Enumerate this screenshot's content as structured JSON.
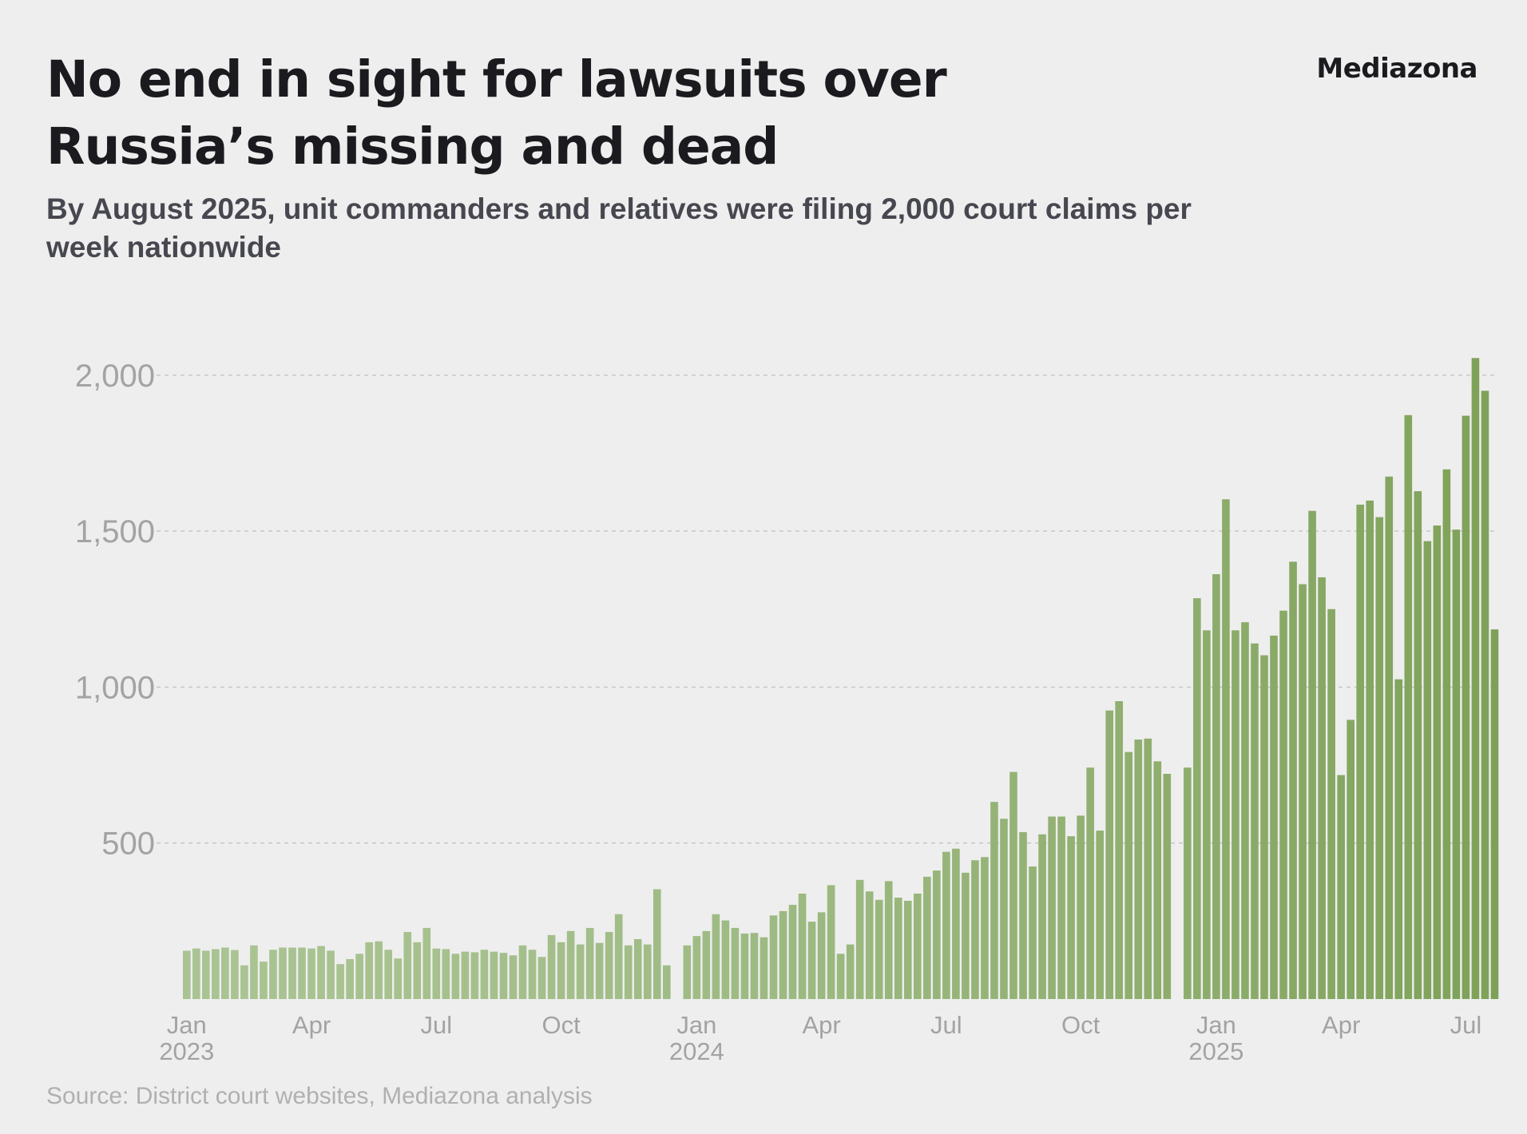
{
  "header": {
    "title": "No end in sight for lawsuits over Russia’s missing and dead",
    "brand": "Mediazona",
    "subtitle": "By August 2025, unit commanders and relatives were filing 2,000 court claims per week nationwide"
  },
  "footer": {
    "source": "Source: District court websites, Mediazona analysis"
  },
  "colors": {
    "background": "#eeeeee",
    "bar_light": "#a9c392",
    "bar_dark": "#7ea158",
    "grid": "#c4c4c4",
    "axis_text": "#a3a3a3"
  },
  "chart_data": {
    "type": "bar",
    "ylim": [
      0,
      2100
    ],
    "yticks": [
      500,
      1000,
      1500,
      2000
    ],
    "ytick_labels": [
      "500",
      "1,000",
      "1,500",
      "2,000"
    ],
    "grid": true,
    "x_tick_labels": [
      {
        "week": 0,
        "month": "Jan",
        "year": "2023"
      },
      {
        "week": 13,
        "month": "Apr",
        "year": ""
      },
      {
        "week": 26,
        "month": "Jul",
        "year": ""
      },
      {
        "week": 39,
        "month": "Oct",
        "year": ""
      },
      {
        "week": 52,
        "month": "Jan",
        "year": "2024"
      },
      {
        "week": 65,
        "month": "Apr",
        "year": ""
      },
      {
        "week": 78,
        "month": "Jul",
        "year": ""
      },
      {
        "week": 92,
        "month": "Oct",
        "year": ""
      },
      {
        "week": 105,
        "month": "Jan",
        "year": "2025"
      },
      {
        "week": 118,
        "month": "Apr",
        "year": ""
      },
      {
        "week": 131,
        "month": "Jul",
        "year": ""
      }
    ],
    "series": [
      {
        "years": [
          {
            "year": "2023",
            "values": [
              155,
              162,
              155,
              160,
              165,
              157,
              108,
              172,
              120,
              158,
              165,
              165,
              165,
              162,
              170,
              155,
              112,
              128,
              145,
              182,
              185,
              158,
              130,
              215,
              182,
              228,
              162,
              160,
              145,
              152,
              150,
              158,
              152,
              148,
              140,
              172,
              158,
              135,
              205,
              182,
              218,
              175,
              228,
              180,
              215,
              272,
              172,
              192,
              175,
              352,
              108
            ]
          },
          {
            "year": "2024",
            "values": [
              172,
              202,
              218,
              272,
              252,
              228,
              210,
              212,
              198,
              268,
              282,
              302,
              338,
              248,
              278,
              365,
              145,
              175,
              382,
              345,
              318,
              378,
              325,
              315,
              338,
              392,
              412,
              472,
              482,
              405,
              445,
              455,
              632,
              578,
              728,
              535,
              425,
              528,
              585,
              585,
              522,
              588,
              742,
              540,
              925,
              955,
              792,
              832,
              835,
              762,
              722
            ]
          },
          {
            "year": "2025",
            "values": [
              742,
              1285,
              1182,
              1362,
              1602,
              1182,
              1208,
              1140,
              1102,
              1165,
              1245,
              1402,
              1330,
              1565,
              1352,
              1250,
              718,
              895,
              1585,
              1598,
              1545,
              1675,
              1025,
              1872,
              1628,
              1468,
              1518,
              1698,
              1505,
              1870,
              2055,
              1950,
              1185
            ]
          }
        ]
      }
    ]
  }
}
